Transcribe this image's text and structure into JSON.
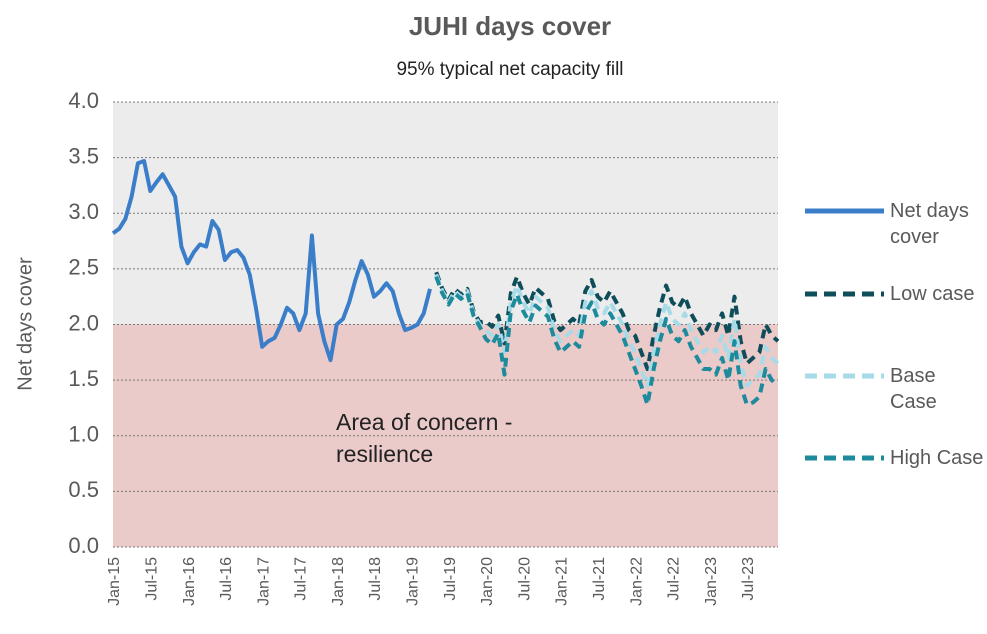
{
  "chart_data": {
    "type": "line",
    "title": "JUHI days cover",
    "subtitle": "95% typical net capacity fill",
    "y_label": "Net days cover",
    "annotation": "Area of concern - resilience",
    "concern_below": 2,
    "colors": {
      "above": "#ececec",
      "below": "#ebcaca"
    },
    "categories": [
      "Jan-15",
      null,
      null,
      null,
      null,
      null,
      "Jul-15",
      null,
      null,
      null,
      null,
      null,
      "Jan-16",
      null,
      null,
      null,
      null,
      null,
      "Jul-16",
      null,
      null,
      null,
      null,
      null,
      "Jan-17",
      null,
      null,
      null,
      null,
      null,
      "Jul-17",
      null,
      null,
      null,
      null,
      null,
      "Jan-18",
      null,
      null,
      null,
      null,
      null,
      "Jul-18",
      null,
      null,
      null,
      null,
      null,
      "Jan-19",
      null,
      null,
      null,
      null,
      null,
      "Jul-19",
      null,
      null,
      null,
      null,
      null,
      "Jan-20",
      null,
      null,
      null,
      null,
      null,
      "Jul-20",
      null,
      null,
      null,
      null,
      null,
      "Jan-21",
      null,
      null,
      null,
      null,
      null,
      "Jul-21",
      null,
      null,
      null,
      null,
      null,
      "Jan-22",
      null,
      null,
      null,
      null,
      null,
      "Jul-22",
      null,
      null,
      null,
      null,
      null,
      "Jan-23",
      null,
      null,
      null,
      null,
      null,
      "Jul-23",
      null,
      null,
      null,
      null,
      null
    ],
    "series": [
      {
        "name": "Net days cover",
        "color": "#3a7dc9",
        "dashed": false,
        "values": [
          2.82,
          2.86,
          2.95,
          3.15,
          3.45,
          3.47,
          3.2,
          3.28,
          3.35,
          3.25,
          3.15,
          2.7,
          2.55,
          2.65,
          2.72,
          2.7,
          2.93,
          2.85,
          2.58,
          2.65,
          2.67,
          2.6,
          2.45,
          2.15,
          1.8,
          1.85,
          1.88,
          2.0,
          2.15,
          2.1,
          1.95,
          2.1,
          2.8,
          2.1,
          1.85,
          1.68,
          2.0,
          2.05,
          2.2,
          2.4,
          2.57,
          2.45,
          2.25,
          2.3,
          2.37,
          2.3,
          2.1,
          1.95,
          1.97,
          2.0,
          2.1,
          2.32,
          null,
          null,
          null,
          null,
          null,
          null,
          null,
          null,
          null,
          null,
          null,
          null,
          null,
          null,
          null,
          null,
          null,
          null,
          null,
          null,
          null,
          null,
          null,
          null,
          null,
          null,
          null,
          null,
          null,
          null,
          null,
          null,
          null,
          null,
          null,
          null,
          null,
          null,
          null,
          null,
          null,
          null,
          null,
          null,
          null,
          null,
          null,
          null,
          null,
          null,
          null,
          null,
          null,
          null,
          null,
          null
        ]
      },
      {
        "name": "Low case",
        "color": "#0e4d5a",
        "dashed": true,
        "values": [
          null,
          null,
          null,
          null,
          null,
          null,
          null,
          null,
          null,
          null,
          null,
          null,
          null,
          null,
          null,
          null,
          null,
          null,
          null,
          null,
          null,
          null,
          null,
          null,
          null,
          null,
          null,
          null,
          null,
          null,
          null,
          null,
          null,
          null,
          null,
          null,
          null,
          null,
          null,
          null,
          null,
          null,
          null,
          null,
          null,
          null,
          null,
          null,
          null,
          null,
          null,
          null,
          2.47,
          2.32,
          2.22,
          2.32,
          2.27,
          2.32,
          2.12,
          2.02,
          2.03,
          1.98,
          2.08,
          1.83,
          2.28,
          2.43,
          2.28,
          2.18,
          2.33,
          2.28,
          2.23,
          2.03,
          1.95,
          2.0,
          2.05,
          2.0,
          2.3,
          2.4,
          2.25,
          2.2,
          2.3,
          2.2,
          2.1,
          1.95,
          1.9,
          1.75,
          1.6,
          1.9,
          2.15,
          2.35,
          2.2,
          2.15,
          2.25,
          2.1,
          2.0,
          1.9,
          2.0,
          1.95,
          2.1,
          1.9,
          2.25,
          1.85,
          1.65,
          1.7,
          1.75,
          2.0,
          1.9,
          1.85
        ]
      },
      {
        "name": "Base Case",
        "color": "#a8dbe8",
        "dashed": true,
        "values": [
          null,
          null,
          null,
          null,
          null,
          null,
          null,
          null,
          null,
          null,
          null,
          null,
          null,
          null,
          null,
          null,
          null,
          null,
          null,
          null,
          null,
          null,
          null,
          null,
          null,
          null,
          null,
          null,
          null,
          null,
          null,
          null,
          null,
          null,
          null,
          null,
          null,
          null,
          null,
          null,
          null,
          null,
          null,
          null,
          null,
          null,
          null,
          null,
          null,
          null,
          null,
          null,
          2.45,
          2.3,
          2.2,
          2.3,
          2.25,
          2.3,
          2.1,
          2.0,
          1.95,
          1.9,
          2.0,
          1.75,
          2.2,
          2.35,
          2.2,
          2.1,
          2.25,
          2.2,
          2.15,
          1.95,
          1.85,
          1.9,
          1.95,
          1.9,
          2.2,
          2.3,
          2.15,
          2.1,
          2.2,
          2.1,
          2.0,
          1.85,
          1.75,
          1.6,
          1.45,
          1.75,
          2.0,
          2.2,
          2.05,
          2.0,
          2.1,
          1.95,
          1.85,
          1.75,
          1.8,
          1.75,
          1.9,
          1.7,
          2.05,
          1.65,
          1.45,
          1.5,
          1.55,
          1.8,
          1.7,
          1.65
        ]
      },
      {
        "name": "High Case",
        "color": "#1d8b9c",
        "dashed": true,
        "values": [
          null,
          null,
          null,
          null,
          null,
          null,
          null,
          null,
          null,
          null,
          null,
          null,
          null,
          null,
          null,
          null,
          null,
          null,
          null,
          null,
          null,
          null,
          null,
          null,
          null,
          null,
          null,
          null,
          null,
          null,
          null,
          null,
          null,
          null,
          null,
          null,
          null,
          null,
          null,
          null,
          null,
          null,
          null,
          null,
          null,
          null,
          null,
          null,
          null,
          null,
          null,
          null,
          2.43,
          2.28,
          2.18,
          2.28,
          2.23,
          2.28,
          2.08,
          1.98,
          1.87,
          1.82,
          1.92,
          1.55,
          2.12,
          2.27,
          2.12,
          2.02,
          2.17,
          2.12,
          2.07,
          1.87,
          1.75,
          1.8,
          1.85,
          1.8,
          2.1,
          2.2,
          2.05,
          2.0,
          2.1,
          2.0,
          1.9,
          1.75,
          1.6,
          1.45,
          1.28,
          1.6,
          1.85,
          2.05,
          1.9,
          1.85,
          1.95,
          1.8,
          1.7,
          1.6,
          1.6,
          1.55,
          1.7,
          1.5,
          1.85,
          1.45,
          1.28,
          1.3,
          1.35,
          1.6,
          1.5,
          1.45
        ]
      }
    ],
    "ylim": [
      0,
      4
    ],
    "yticks": [
      {
        "value": 0,
        "label": "0.0"
      },
      0.5,
      {
        "value": 1,
        "label": "1.0"
      },
      1.5,
      {
        "value": 2,
        "label": "2.0"
      },
      2.5,
      {
        "value": 3,
        "label": "3.0"
      },
      3.5,
      {
        "value": 4,
        "label": "4.0"
      }
    ],
    "grid": true,
    "legend": "right"
  }
}
